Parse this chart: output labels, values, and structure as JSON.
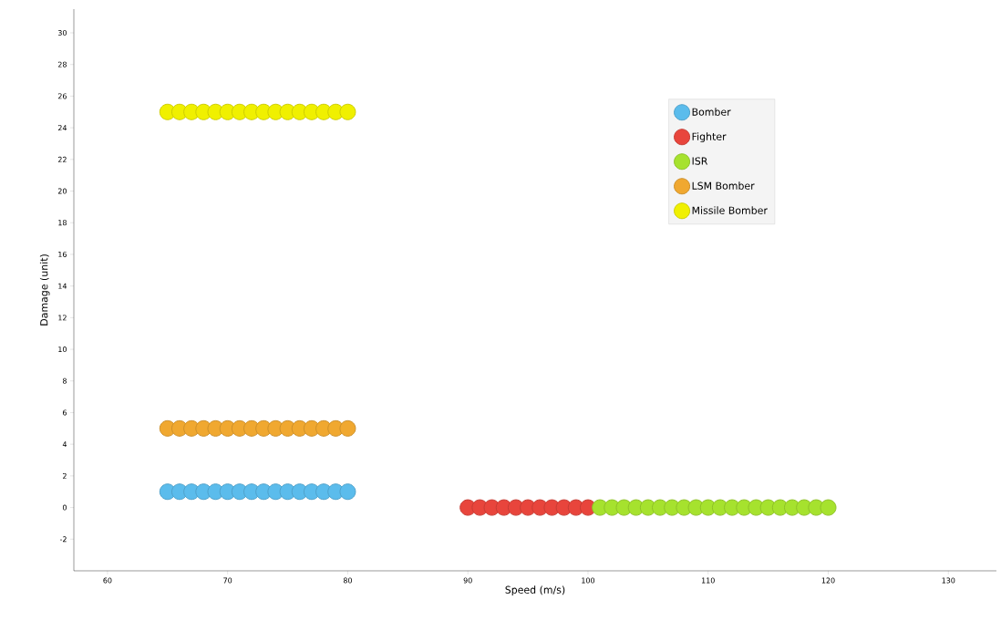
{
  "chart_data": {
    "type": "scatter",
    "xlabel": "Speed (m/s)",
    "ylabel": "Damage (unit)",
    "xlim": [
      57.2,
      134
    ],
    "ylim": [
      -4,
      31.5
    ],
    "xticks": [
      60,
      70,
      80,
      90,
      100,
      110,
      120,
      130
    ],
    "yticks": [
      -2,
      0,
      2,
      4,
      6,
      8,
      10,
      12,
      14,
      16,
      18,
      20,
      22,
      24,
      26,
      28,
      30
    ],
    "grid": false,
    "legend": "right",
    "marker": "circle",
    "series": [
      {
        "name": "Bomber",
        "color": "#5bbcec",
        "x": [
          65,
          66,
          67,
          68,
          69,
          70,
          71,
          72,
          73,
          74,
          75,
          76,
          77,
          78,
          79,
          80
        ],
        "values": [
          1,
          1,
          1,
          1,
          1,
          1,
          1,
          1,
          1,
          1,
          1,
          1,
          1,
          1,
          1,
          1
        ]
      },
      {
        "name": "Fighter",
        "color": "#e8453c",
        "x": [
          90,
          91,
          92,
          93,
          94,
          95,
          96,
          97,
          98,
          99,
          100
        ],
        "values": [
          0,
          0,
          0,
          0,
          0,
          0,
          0,
          0,
          0,
          0,
          0
        ]
      },
      {
        "name": "ISR",
        "color": "#a6e22e",
        "x": [
          101,
          102,
          103,
          104,
          105,
          106,
          107,
          108,
          109,
          110,
          111,
          112,
          113,
          114,
          115,
          116,
          117,
          118,
          119,
          120
        ],
        "values": [
          0,
          0,
          0,
          0,
          0,
          0,
          0,
          0,
          0,
          0,
          0,
          0,
          0,
          0,
          0,
          0,
          0,
          0,
          0,
          0
        ]
      },
      {
        "name": "LSM Bomber",
        "color": "#f0a830",
        "x": [
          65,
          66,
          67,
          68,
          69,
          70,
          71,
          72,
          73,
          74,
          75,
          76,
          77,
          78,
          79,
          80
        ],
        "values": [
          5,
          5,
          5,
          5,
          5,
          5,
          5,
          5,
          5,
          5,
          5,
          5,
          5,
          5,
          5,
          5
        ]
      },
      {
        "name": "Missile Bomber",
        "color": "#f0f000",
        "x": [
          65,
          66,
          67,
          68,
          69,
          70,
          71,
          72,
          73,
          74,
          75,
          76,
          77,
          78,
          79,
          80
        ],
        "values": [
          25,
          25,
          25,
          25,
          25,
          25,
          25,
          25,
          25,
          25,
          25,
          25,
          25,
          25,
          25,
          25
        ]
      }
    ]
  }
}
